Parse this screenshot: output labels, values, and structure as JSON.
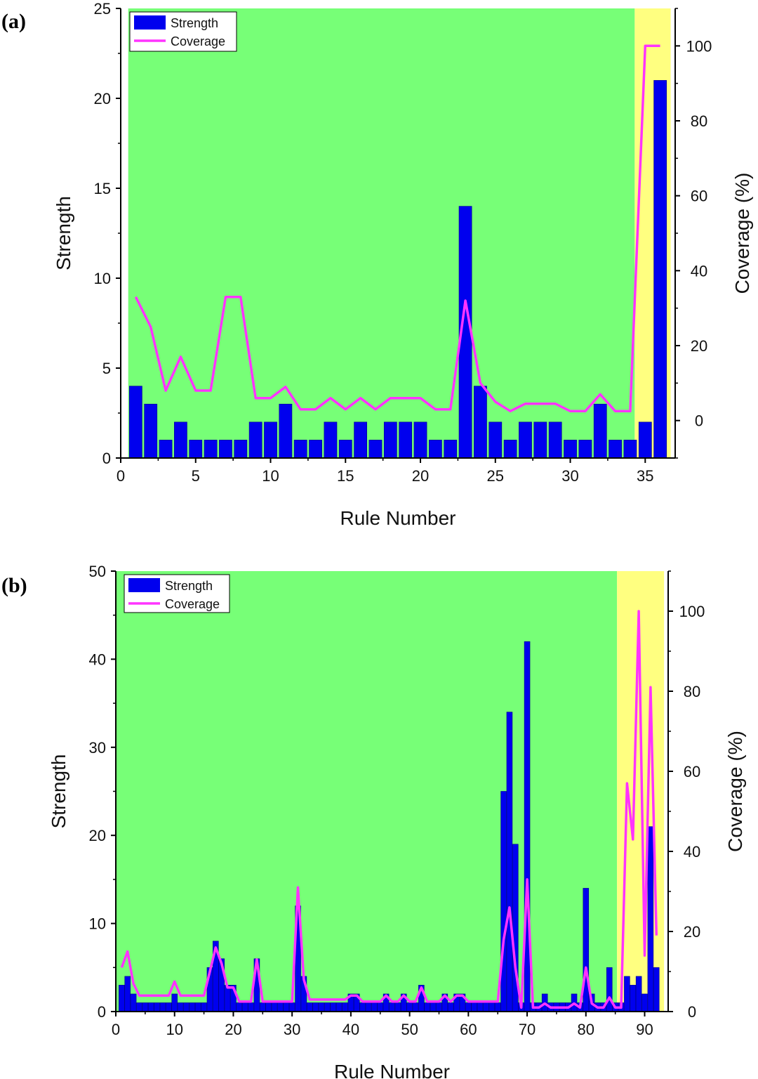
{
  "chart_data": [
    {
      "type": "bar",
      "panel_label": "(a)",
      "xlabel": "Rule Number",
      "ylabel": "Strength",
      "y2label": "Coverage (%)",
      "xlim": [
        0,
        37
      ],
      "ylim": [
        0,
        25
      ],
      "y2lim": [
        -10,
        110
      ],
      "xticks": [
        0,
        5,
        10,
        15,
        20,
        25,
        30,
        35
      ],
      "yticks": [
        0,
        5,
        10,
        15,
        20,
        25
      ],
      "y2ticks": [
        0,
        20,
        40,
        60,
        80,
        100
      ],
      "legend": {
        "placement": "top-left",
        "entries": [
          "Strength",
          "Coverage"
        ]
      },
      "regions": [
        {
          "from": 0.5,
          "to": 34.3,
          "color": "#77ff77"
        },
        {
          "from": 34.3,
          "to": 36.7,
          "color": "#ffff80"
        }
      ],
      "series": [
        {
          "name": "Strength",
          "kind": "bar",
          "axis": "left",
          "color": "#0000ee",
          "x": [
            1,
            2,
            3,
            4,
            5,
            6,
            7,
            8,
            9,
            10,
            11,
            12,
            13,
            14,
            15,
            16,
            17,
            18,
            19,
            20,
            21,
            22,
            23,
            24,
            25,
            26,
            27,
            28,
            29,
            30,
            31,
            32,
            33,
            34,
            35,
            36
          ],
          "values": [
            4,
            3,
            1,
            2,
            1,
            1,
            1,
            1,
            2,
            2,
            3,
            1,
            1,
            2,
            1,
            2,
            1,
            2,
            2,
            2,
            1,
            1,
            14,
            4,
            2,
            1,
            2,
            2,
            2,
            1,
            1,
            3,
            1,
            1,
            2,
            21
          ]
        },
        {
          "name": "Coverage",
          "kind": "line",
          "axis": "right",
          "color": "#ff33ff",
          "x": [
            1,
            2,
            3,
            4,
            5,
            6,
            7,
            8,
            9,
            10,
            11,
            12,
            13,
            14,
            15,
            16,
            17,
            18,
            19,
            20,
            21,
            22,
            23,
            24,
            25,
            26,
            27,
            28,
            29,
            30,
            31,
            32,
            33,
            34,
            35,
            36
          ],
          "values": [
            33,
            25,
            8,
            17,
            8,
            8,
            33,
            33,
            6,
            6,
            9,
            3,
            3,
            6,
            3,
            6,
            3,
            6,
            6,
            6,
            3,
            3,
            32,
            10,
            5,
            2.5,
            4.5,
            4.5,
            4.5,
            2.5,
            2.5,
            7,
            2.5,
            2.5,
            100,
            100
          ]
        }
      ]
    },
    {
      "type": "bar",
      "panel_label": "(b)",
      "xlabel": "Rule Number",
      "ylabel": "Strength",
      "y2label": "Coverage (%)",
      "xlim": [
        0,
        94
      ],
      "ylim": [
        0,
        50
      ],
      "y2lim": [
        0,
        110
      ],
      "xticks": [
        0,
        10,
        20,
        30,
        40,
        50,
        60,
        70,
        80,
        90
      ],
      "yticks": [
        0,
        10,
        20,
        30,
        40,
        50
      ],
      "y2ticks": [
        0,
        20,
        40,
        60,
        80,
        100
      ],
      "legend": {
        "placement": "top-left",
        "entries": [
          "Strength",
          "Coverage"
        ]
      },
      "regions": [
        {
          "from": 0,
          "to": 85.3,
          "color": "#77ff77"
        },
        {
          "from": 85.3,
          "to": 93.3,
          "color": "#ffff80"
        }
      ],
      "series": [
        {
          "name": "Strength",
          "kind": "bar",
          "axis": "left",
          "color": "#0000ee",
          "x": [
            1,
            2,
            3,
            4,
            5,
            6,
            7,
            8,
            9,
            10,
            11,
            12,
            13,
            14,
            15,
            16,
            17,
            18,
            19,
            20,
            21,
            22,
            23,
            24,
            25,
            26,
            27,
            28,
            29,
            30,
            31,
            32,
            33,
            34,
            35,
            36,
            37,
            38,
            39,
            40,
            41,
            42,
            43,
            44,
            45,
            46,
            47,
            48,
            49,
            50,
            51,
            52,
            53,
            54,
            55,
            56,
            57,
            58,
            59,
            60,
            61,
            62,
            63,
            64,
            65,
            66,
            67,
            68,
            69,
            70,
            71,
            72,
            73,
            74,
            75,
            76,
            77,
            78,
            79,
            80,
            81,
            82,
            83,
            84,
            85,
            86,
            87,
            88,
            89,
            90,
            91,
            92
          ],
          "values": [
            3,
            4,
            2,
            1,
            1,
            1,
            1,
            1,
            1,
            2,
            1,
            1,
            1,
            1,
            1,
            5,
            8,
            6,
            3,
            3,
            1,
            1,
            1,
            6,
            1,
            1,
            1,
            1,
            1,
            1,
            12,
            4,
            1,
            1,
            1,
            1,
            1,
            1,
            1,
            2,
            2,
            1,
            1,
            1,
            1,
            2,
            1,
            1,
            2,
            1,
            1,
            3,
            1,
            1,
            1,
            2,
            1,
            2,
            2,
            1,
            1,
            1,
            1,
            1,
            1,
            25,
            34,
            19,
            1,
            42,
            1,
            1,
            2,
            1,
            1,
            1,
            1,
            2,
            1,
            14,
            2,
            1,
            1,
            5,
            1,
            1,
            4,
            3,
            4,
            2,
            21,
            5
          ]
        },
        {
          "name": "Coverage",
          "kind": "line",
          "axis": "right",
          "color": "#ff33ff",
          "x": [
            1,
            2,
            3,
            4,
            5,
            6,
            7,
            8,
            9,
            10,
            11,
            12,
            13,
            14,
            15,
            16,
            17,
            18,
            19,
            20,
            21,
            22,
            23,
            24,
            25,
            26,
            27,
            28,
            29,
            30,
            31,
            32,
            33,
            34,
            35,
            36,
            37,
            38,
            39,
            40,
            41,
            42,
            43,
            44,
            45,
            46,
            47,
            48,
            49,
            50,
            51,
            52,
            53,
            54,
            55,
            56,
            57,
            58,
            59,
            60,
            61,
            62,
            63,
            64,
            65,
            66,
            67,
            68,
            69,
            70,
            71,
            72,
            73,
            74,
            75,
            76,
            77,
            78,
            79,
            80,
            81,
            82,
            83,
            84,
            85,
            86,
            87,
            88,
            89,
            90,
            91,
            92
          ],
          "values": [
            11,
            15,
            7,
            4,
            4,
            4,
            4,
            4,
            4,
            7.5,
            4,
            4,
            4,
            4,
            4,
            10,
            16,
            12,
            6,
            6,
            2.5,
            2.5,
            2.5,
            13,
            2.5,
            2.5,
            2.5,
            2.5,
            2.5,
            2.5,
            31,
            8,
            3,
            3,
            3,
            3,
            3,
            3,
            3,
            4,
            4,
            2.5,
            2.5,
            2.5,
            2.5,
            4,
            2.5,
            2.5,
            4,
            2.5,
            2.5,
            6,
            2.5,
            2.5,
            2.5,
            4,
            2.5,
            4,
            4,
            2.5,
            2.5,
            2.5,
            2.5,
            2.5,
            2.5,
            18,
            26,
            11,
            1,
            33,
            1,
            1,
            2,
            1,
            1,
            1,
            1,
            2,
            1,
            11,
            2,
            1,
            1,
            3.5,
            1,
            1,
            57,
            43,
            100,
            14,
            81,
            19
          ]
        }
      ]
    }
  ]
}
